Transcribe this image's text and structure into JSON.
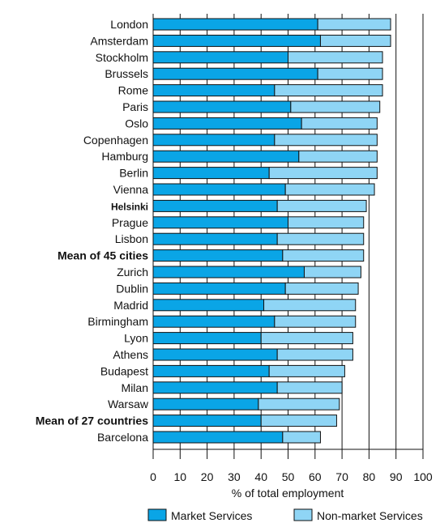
{
  "chart_data": {
    "type": "bar",
    "orientation": "horizontal",
    "stacked": true,
    "categories": [
      "London",
      "Amsterdam",
      "Stockholm",
      "Brussels",
      "Rome",
      "Paris",
      "Oslo",
      "Copenhagen",
      "Hamburg",
      "Berlin",
      "Vienna",
      "Helsinki",
      "Prague",
      "Lisbon",
      "Mean of 45 cities",
      "Zurich",
      "Dublin",
      "Madrid",
      "Birmingham",
      "Lyon",
      "Athens",
      "Budapest",
      "Milan",
      "Warsaw",
      "Mean of 27 countries",
      "Barcelona"
    ],
    "bold_categories": [
      "Helsinki",
      "Mean of 45 cities",
      "Mean of 27 countries"
    ],
    "series": [
      {
        "name": "Market Services",
        "color": "#0aa5e6",
        "values": [
          61,
          62,
          50,
          61,
          45,
          51,
          55,
          45,
          54,
          43,
          49,
          46,
          50,
          46,
          48,
          56,
          49,
          41,
          45,
          40,
          46,
          43,
          46,
          39,
          40,
          48
        ]
      },
      {
        "name": "Non-market Services",
        "color": "#8fd5f5",
        "values": [
          27,
          26,
          35,
          24,
          40,
          33,
          28,
          38,
          29,
          40,
          33,
          33,
          28,
          32,
          30,
          21,
          27,
          34,
          30,
          34,
          28,
          28,
          24,
          30,
          28,
          14
        ]
      }
    ],
    "xlabel": "% of total employment",
    "xlim": [
      0,
      100
    ],
    "xticks": [
      0,
      10,
      20,
      30,
      40,
      50,
      60,
      70,
      80,
      90,
      100
    ],
    "grid": "vertical",
    "legend": "bottom"
  }
}
